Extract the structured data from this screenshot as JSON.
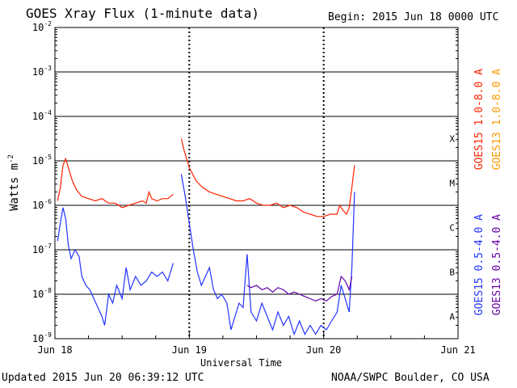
{
  "title": "GOES Xray Flux (1-minute data)",
  "begin": "Begin:  2015 Jun 18 0000 UTC",
  "updated": "Updated 2015 Jun 20 06:39:12 UTC",
  "credit": "NOAA/SWPC Boulder, CO USA",
  "colors": {
    "goes15_long": "#ff2200",
    "goes13_long": "#ff9900",
    "goes15_short": "#2233ff",
    "goes13_short": "#6600aa"
  },
  "chart_data": {
    "type": "line",
    "title": "GOES Xray Flux (1-minute data)",
    "xlabel": "Universal Time",
    "ylabel": "Watts m^-2",
    "y_scale": "log",
    "ylim": [
      1e-09,
      0.01
    ],
    "xlim": [
      0,
      3
    ],
    "x_ticks": [
      {
        "value": 0,
        "label": "Jun 18"
      },
      {
        "value": 1,
        "label": "Jun 19"
      },
      {
        "value": 2,
        "label": "Jun 20"
      },
      {
        "value": 3,
        "label": "Jun 21"
      }
    ],
    "y_ticks": [
      {
        "exp": -2,
        "label": "10",
        "sup": "-2"
      },
      {
        "exp": -3,
        "label": "10",
        "sup": "-3"
      },
      {
        "exp": -4,
        "label": "10",
        "sup": "-4"
      },
      {
        "exp": -5,
        "label": "10",
        "sup": "-5"
      },
      {
        "exp": -6,
        "label": "10",
        "sup": "-6"
      },
      {
        "exp": -7,
        "label": "10",
        "sup": "-7"
      },
      {
        "exp": -8,
        "label": "10",
        "sup": "-8"
      },
      {
        "exp": -9,
        "label": "10",
        "sup": "-9"
      }
    ],
    "flare_classes": [
      {
        "label": "X",
        "exp": -4
      },
      {
        "label": "M",
        "exp": -5
      },
      {
        "label": "C",
        "exp": -6
      },
      {
        "label": "B",
        "exp": -7
      },
      {
        "label": "A",
        "exp": -8
      }
    ],
    "grid": "horizontal decades, dotted day lines",
    "series": [
      {
        "name": "GOES15 1.0-8.0 A",
        "color_key": "goes15_long",
        "segments": [
          [
            [
              0.02,
              -5.9
            ],
            [
              0.04,
              -5.6
            ],
            [
              0.06,
              -5.1
            ],
            [
              0.08,
              -4.95
            ],
            [
              0.1,
              -5.15
            ],
            [
              0.13,
              -5.45
            ],
            [
              0.16,
              -5.65
            ],
            [
              0.2,
              -5.8
            ],
            [
              0.25,
              -5.85
            ],
            [
              0.3,
              -5.9
            ],
            [
              0.35,
              -5.85
            ],
            [
              0.4,
              -5.95
            ],
            [
              0.45,
              -5.95
            ],
            [
              0.5,
              -6.05
            ],
            [
              0.55,
              -6.0
            ],
            [
              0.6,
              -5.95
            ],
            [
              0.65,
              -5.9
            ],
            [
              0.68,
              -5.95
            ],
            [
              0.7,
              -5.7
            ],
            [
              0.72,
              -5.85
            ],
            [
              0.76,
              -5.9
            ],
            [
              0.8,
              -5.85
            ],
            [
              0.84,
              -5.85
            ],
            [
              0.88,
              -5.75
            ]
          ],
          [
            [
              0.94,
              -4.5
            ],
            [
              0.96,
              -4.75
            ],
            [
              1.0,
              -5.15
            ],
            [
              1.05,
              -5.45
            ],
            [
              1.1,
              -5.6
            ],
            [
              1.15,
              -5.7
            ],
            [
              1.2,
              -5.75
            ],
            [
              1.25,
              -5.8
            ],
            [
              1.3,
              -5.85
            ],
            [
              1.35,
              -5.9
            ],
            [
              1.4,
              -5.9
            ],
            [
              1.45,
              -5.85
            ],
            [
              1.5,
              -5.95
            ],
            [
              1.55,
              -6.0
            ],
            [
              1.6,
              -6.0
            ],
            [
              1.65,
              -5.95
            ],
            [
              1.7,
              -6.05
            ],
            [
              1.75,
              -6.0
            ],
            [
              1.8,
              -6.05
            ],
            [
              1.85,
              -6.15
            ],
            [
              1.9,
              -6.2
            ],
            [
              1.95,
              -6.25
            ],
            [
              2.0,
              -6.25
            ],
            [
              2.05,
              -6.2
            ],
            [
              2.1,
              -6.2
            ],
            [
              2.12,
              -6.0
            ],
            [
              2.14,
              -6.1
            ],
            [
              2.17,
              -6.2
            ],
            [
              2.19,
              -6.05
            ],
            [
              2.21,
              -5.6
            ],
            [
              2.23,
              -5.1
            ]
          ]
        ]
      },
      {
        "name": "GOES13 1.0-8.0 A",
        "color_key": "goes13_long",
        "segments": []
      },
      {
        "name": "GOES15 0.5-4.0 A",
        "color_key": "goes15_short",
        "segments": [
          [
            [
              0.02,
              -6.8
            ],
            [
              0.04,
              -6.4
            ],
            [
              0.06,
              -6.05
            ],
            [
              0.08,
              -6.3
            ],
            [
              0.1,
              -6.9
            ],
            [
              0.12,
              -7.2
            ],
            [
              0.15,
              -7.0
            ],
            [
              0.18,
              -7.15
            ],
            [
              0.2,
              -7.6
            ],
            [
              0.23,
              -7.8
            ],
            [
              0.26,
              -7.9
            ],
            [
              0.29,
              -8.1
            ],
            [
              0.32,
              -8.3
            ],
            [
              0.35,
              -8.5
            ],
            [
              0.37,
              -8.7
            ],
            [
              0.4,
              -8.0
            ],
            [
              0.43,
              -8.2
            ],
            [
              0.46,
              -7.8
            ],
            [
              0.5,
              -8.1
            ],
            [
              0.53,
              -7.4
            ],
            [
              0.56,
              -7.9
            ],
            [
              0.6,
              -7.6
            ],
            [
              0.64,
              -7.8
            ],
            [
              0.68,
              -7.7
            ],
            [
              0.72,
              -7.5
            ],
            [
              0.76,
              -7.6
            ],
            [
              0.8,
              -7.5
            ],
            [
              0.84,
              -7.7
            ],
            [
              0.88,
              -7.3
            ]
          ],
          [
            [
              0.94,
              -5.3
            ],
            [
              0.97,
              -5.8
            ],
            [
              1.0,
              -6.4
            ],
            [
              1.03,
              -7.0
            ],
            [
              1.06,
              -7.5
            ],
            [
              1.09,
              -7.8
            ],
            [
              1.12,
              -7.6
            ],
            [
              1.15,
              -7.4
            ],
            [
              1.18,
              -7.9
            ],
            [
              1.21,
              -8.1
            ],
            [
              1.24,
              -8.0
            ],
            [
              1.28,
              -8.2
            ],
            [
              1.31,
              -8.8
            ],
            [
              1.34,
              -8.5
            ],
            [
              1.37,
              -8.2
            ],
            [
              1.4,
              -8.3
            ],
            [
              1.43,
              -7.1
            ],
            [
              1.46,
              -8.4
            ],
            [
              1.5,
              -8.6
            ],
            [
              1.54,
              -8.2
            ],
            [
              1.58,
              -8.5
            ],
            [
              1.62,
              -8.8
            ],
            [
              1.66,
              -8.4
            ],
            [
              1.7,
              -8.7
            ],
            [
              1.74,
              -8.5
            ],
            [
              1.78,
              -8.9
            ],
            [
              1.82,
              -8.6
            ],
            [
              1.86,
              -8.9
            ],
            [
              1.9,
              -8.7
            ],
            [
              1.94,
              -8.9
            ],
            [
              1.98,
              -8.7
            ],
            [
              2.02,
              -8.8
            ],
            [
              2.06,
              -8.6
            ],
            [
              2.1,
              -8.4
            ],
            [
              2.13,
              -7.8
            ],
            [
              2.16,
              -8.1
            ],
            [
              2.19,
              -8.4
            ],
            [
              2.21,
              -7.4
            ],
            [
              2.23,
              -5.7
            ]
          ]
        ]
      },
      {
        "name": "GOES13 0.5-4.0 A",
        "color_key": "goes13_short",
        "segments": [
          [
            [
              1.43,
              -7.8
            ],
            [
              1.46,
              -7.85
            ],
            [
              1.5,
              -7.8
            ],
            [
              1.54,
              -7.9
            ],
            [
              1.58,
              -7.85
            ],
            [
              1.62,
              -7.95
            ],
            [
              1.66,
              -7.85
            ],
            [
              1.7,
              -7.9
            ],
            [
              1.74,
              -8.0
            ],
            [
              1.78,
              -7.95
            ],
            [
              1.82,
              -8.0
            ],
            [
              1.86,
              -8.05
            ],
            [
              1.9,
              -8.1
            ],
            [
              1.94,
              -8.15
            ],
            [
              1.98,
              -8.1
            ],
            [
              2.02,
              -8.15
            ],
            [
              2.06,
              -8.05
            ],
            [
              2.1,
              -8.0
            ],
            [
              2.13,
              -7.6
            ],
            [
              2.16,
              -7.7
            ],
            [
              2.19,
              -7.9
            ],
            [
              2.21,
              -7.6
            ]
          ]
        ]
      }
    ]
  }
}
